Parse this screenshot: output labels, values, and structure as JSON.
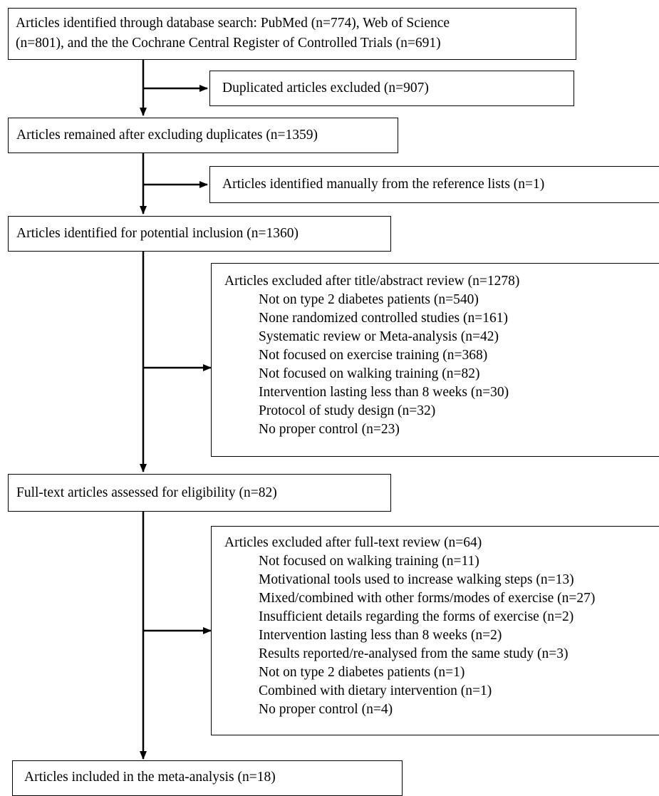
{
  "nodes": {
    "search": {
      "line1": "Articles identified through database search: PubMed (n=774), Web of Science",
      "line2": "(n=801), and the the Cochrane Central Register of Controlled Trials (n=691)"
    },
    "duplicates_excluded": "Duplicated articles excluded (n=907)",
    "remained": "Articles remained after excluding duplicates (n=1359)",
    "manual": "Articles identified manually from the reference lists (n=1)",
    "potential": "Articles identified for potential inclusion (n=1360)",
    "title_abstract": {
      "heading": "Articles excluded after title/abstract review (n=1278)",
      "reasons": [
        "Not on type 2 diabetes patients (n=540)",
        "None randomized controlled studies (n=161)",
        "Systematic review or Meta-analysis (n=42)",
        "Not focused on exercise training (n=368)",
        "Not focused on walking training (n=82)",
        "Intervention lasting less than 8 weeks (n=30)",
        "Protocol of study design (n=32)",
        "No proper control (n=23)"
      ]
    },
    "fulltext_assessed": "Full-text articles assessed for eligibility (n=82)",
    "fulltext_excluded": {
      "heading": "Articles excluded after full-text review (n=64)",
      "reasons": [
        "Not focused on walking training (n=11)",
        "Motivational tools used to increase walking steps (n=13)",
        "Mixed/combined with other forms/modes of exercise (n=27)",
        "Insufficient details regarding the forms of exercise (n=2)",
        "Intervention lasting less than 8 weeks (n=2)",
        "Results reported/re-analysed from the same study (n=3)",
        "Not on type 2 diabetes patients (n=1)",
        "Combined with dietary intervention (n=1)",
        "No proper control (n=4)"
      ]
    },
    "included": "Articles included in the meta-analysis (n=18)"
  }
}
